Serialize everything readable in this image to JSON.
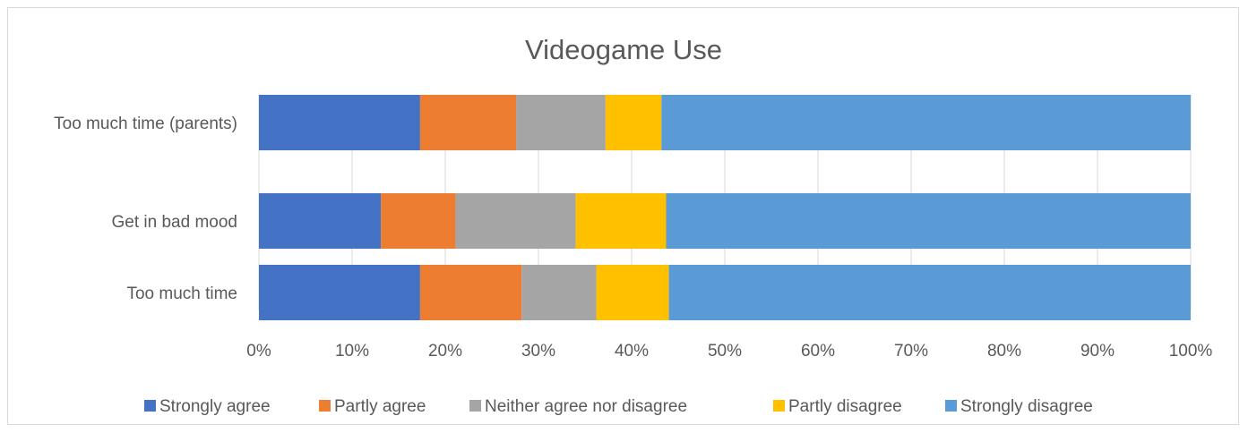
{
  "chart_data": {
    "type": "bar",
    "orientation": "horizontal",
    "stacked": "percent",
    "title": "Videogame Use",
    "categories": [
      "Too much time (parents)",
      "Get in bad mood",
      "Too much time"
    ],
    "series": [
      {
        "name": "Strongly agree",
        "color": "#4472C4",
        "values": [
          17.3,
          13.1,
          17.3
        ]
      },
      {
        "name": "Partly agree",
        "color": "#ED7D31",
        "values": [
          10.3,
          8.0,
          10.9
        ]
      },
      {
        "name": "Neither agree nor disagree",
        "color": "#A5A5A5",
        "values": [
          9.6,
          12.9,
          8.0
        ]
      },
      {
        "name": "Partly disagree",
        "color": "#FFC000",
        "values": [
          6.0,
          9.7,
          7.8
        ]
      },
      {
        "name": "Strongly disagree",
        "color": "#5B9BD5",
        "values": [
          56.8,
          56.3,
          56.0
        ]
      }
    ],
    "x_ticks": [
      "0%",
      "10%",
      "20%",
      "30%",
      "40%",
      "50%",
      "60%",
      "70%",
      "80%",
      "90%",
      "100%"
    ],
    "xlim": [
      0,
      100
    ],
    "grid": true,
    "legend_position": "bottom"
  }
}
